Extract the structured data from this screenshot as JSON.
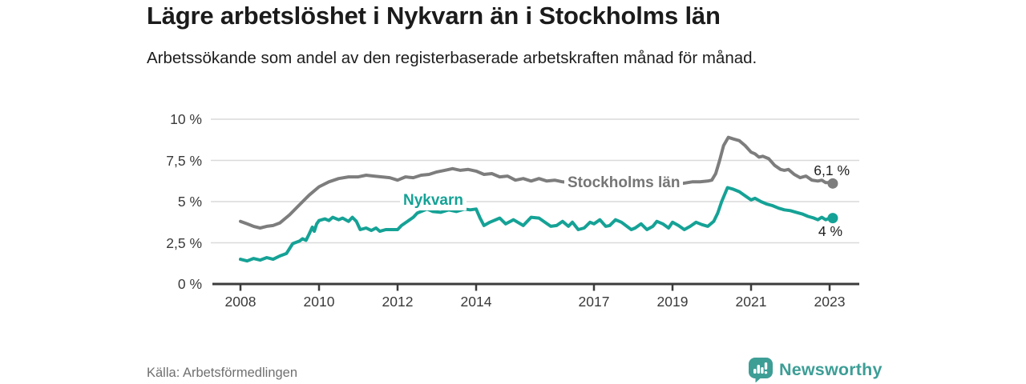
{
  "header": {
    "title": "Lägre arbetslöshet i Nykvarn än i Stockholms län",
    "subtitle": "Arbetssökande som andel av den registerbaserade arbetskraften månad för månad."
  },
  "footer": {
    "source": "Källa: Arbetsförmedlingen",
    "brand": "Newsworthy"
  },
  "colors": {
    "grid": "#dadada",
    "axis": "#3b3b3b",
    "text": "#1d1d1d",
    "muted": "#707070",
    "brand": "#3d9e96",
    "nykvarn": "#15a296",
    "stockholm": "#7d7d7d"
  },
  "chart_data": {
    "type": "line",
    "title": "Lägre arbetslöshet i Nykvarn än i Stockholms län",
    "subtitle": "Arbetssökande som andel av den registerbaserade arbetskraften månad för månad.",
    "unit": "%",
    "xlim": [
      2007.3,
      2023.75
    ],
    "ylim": [
      0,
      10
    ],
    "grid": true,
    "y_ticks": [
      {
        "value": 0,
        "label": "0 %"
      },
      {
        "value": 2.5,
        "label": "2,5 %"
      },
      {
        "value": 5,
        "label": "5 %"
      },
      {
        "value": 7.5,
        "label": "7,5 %"
      },
      {
        "value": 10,
        "label": "10 %"
      }
    ],
    "x_ticks": [
      {
        "value": 2008,
        "label": "2008"
      },
      {
        "value": 2010,
        "label": "2010"
      },
      {
        "value": 2012,
        "label": "2012"
      },
      {
        "value": 2014,
        "label": "2014"
      },
      {
        "value": 2017,
        "label": "2017"
      },
      {
        "value": 2019,
        "label": "2019"
      },
      {
        "value": 2021,
        "label": "2021"
      },
      {
        "value": 2023,
        "label": "2023"
      }
    ],
    "series": [
      {
        "name": "Stockholms län",
        "color": "#7d7d7d",
        "end_label": "6,1 %",
        "end_value": 6.1,
        "points": [
          [
            2008.0,
            3.8
          ],
          [
            2008.17,
            3.65
          ],
          [
            2008.33,
            3.5
          ],
          [
            2008.5,
            3.4
          ],
          [
            2008.67,
            3.5
          ],
          [
            2008.83,
            3.55
          ],
          [
            2009.0,
            3.7
          ],
          [
            2009.25,
            4.2
          ],
          [
            2009.5,
            4.8
          ],
          [
            2009.75,
            5.4
          ],
          [
            2010.0,
            5.9
          ],
          [
            2010.25,
            6.2
          ],
          [
            2010.5,
            6.4
          ],
          [
            2010.75,
            6.5
          ],
          [
            2011.0,
            6.5
          ],
          [
            2011.2,
            6.6
          ],
          [
            2011.4,
            6.55
          ],
          [
            2011.6,
            6.5
          ],
          [
            2011.8,
            6.45
          ],
          [
            2012.0,
            6.3
          ],
          [
            2012.2,
            6.5
          ],
          [
            2012.4,
            6.45
          ],
          [
            2012.6,
            6.6
          ],
          [
            2012.8,
            6.65
          ],
          [
            2013.0,
            6.8
          ],
          [
            2013.2,
            6.9
          ],
          [
            2013.4,
            7.0
          ],
          [
            2013.6,
            6.9
          ],
          [
            2013.8,
            6.95
          ],
          [
            2014.0,
            6.85
          ],
          [
            2014.2,
            6.65
          ],
          [
            2014.4,
            6.7
          ],
          [
            2014.6,
            6.5
          ],
          [
            2014.8,
            6.55
          ],
          [
            2015.0,
            6.3
          ],
          [
            2015.2,
            6.4
          ],
          [
            2015.4,
            6.25
          ],
          [
            2015.6,
            6.4
          ],
          [
            2015.8,
            6.25
          ],
          [
            2016.0,
            6.3
          ],
          [
            2016.2,
            6.2
          ],
          [
            2016.4,
            6.15
          ],
          [
            2016.6,
            6.1
          ],
          [
            2016.8,
            6.1
          ],
          [
            2017.0,
            6.1
          ],
          [
            2017.25,
            6.05
          ],
          [
            2017.5,
            6.1
          ],
          [
            2017.75,
            6.0
          ],
          [
            2018.0,
            6.05
          ],
          [
            2018.25,
            6.0
          ],
          [
            2018.5,
            6.1
          ],
          [
            2018.75,
            6.05
          ],
          [
            2019.0,
            6.15
          ],
          [
            2019.25,
            6.1
          ],
          [
            2019.5,
            6.2
          ],
          [
            2019.7,
            6.2
          ],
          [
            2019.9,
            6.25
          ],
          [
            2020.0,
            6.3
          ],
          [
            2020.1,
            6.7
          ],
          [
            2020.2,
            7.5
          ],
          [
            2020.3,
            8.4
          ],
          [
            2020.42,
            8.9
          ],
          [
            2020.55,
            8.8
          ],
          [
            2020.7,
            8.7
          ],
          [
            2020.85,
            8.4
          ],
          [
            2021.0,
            8.0
          ],
          [
            2021.1,
            7.9
          ],
          [
            2021.2,
            7.7
          ],
          [
            2021.3,
            7.75
          ],
          [
            2021.45,
            7.6
          ],
          [
            2021.6,
            7.2
          ],
          [
            2021.75,
            6.95
          ],
          [
            2021.85,
            6.9
          ],
          [
            2021.95,
            6.95
          ],
          [
            2022.1,
            6.65
          ],
          [
            2022.25,
            6.45
          ],
          [
            2022.4,
            6.55
          ],
          [
            2022.55,
            6.3
          ],
          [
            2022.7,
            6.25
          ],
          [
            2022.8,
            6.3
          ],
          [
            2022.9,
            6.15
          ],
          [
            2023.0,
            6.15
          ],
          [
            2023.08,
            6.1
          ]
        ]
      },
      {
        "name": "Nykvarn",
        "color": "#15a296",
        "end_label": "4 %",
        "end_value": 4.0,
        "points": [
          [
            2008.0,
            1.5
          ],
          [
            2008.17,
            1.4
          ],
          [
            2008.33,
            1.55
          ],
          [
            2008.5,
            1.45
          ],
          [
            2008.67,
            1.6
          ],
          [
            2008.83,
            1.5
          ],
          [
            2009.0,
            1.7
          ],
          [
            2009.17,
            1.85
          ],
          [
            2009.33,
            2.45
          ],
          [
            2009.5,
            2.6
          ],
          [
            2009.58,
            2.75
          ],
          [
            2009.67,
            2.65
          ],
          [
            2009.75,
            3.05
          ],
          [
            2009.83,
            3.45
          ],
          [
            2009.88,
            3.2
          ],
          [
            2009.94,
            3.65
          ],
          [
            2010.0,
            3.85
          ],
          [
            2010.15,
            3.95
          ],
          [
            2010.25,
            3.85
          ],
          [
            2010.35,
            4.05
          ],
          [
            2010.5,
            3.9
          ],
          [
            2010.6,
            4.0
          ],
          [
            2010.75,
            3.8
          ],
          [
            2010.85,
            4.05
          ],
          [
            2010.95,
            3.8
          ],
          [
            2011.05,
            3.3
          ],
          [
            2011.2,
            3.4
          ],
          [
            2011.33,
            3.25
          ],
          [
            2011.45,
            3.4
          ],
          [
            2011.55,
            3.2
          ],
          [
            2011.7,
            3.3
          ],
          [
            2011.85,
            3.3
          ],
          [
            2012.0,
            3.3
          ],
          [
            2012.1,
            3.55
          ],
          [
            2012.25,
            3.8
          ],
          [
            2012.4,
            4.05
          ],
          [
            2012.5,
            4.3
          ],
          [
            2012.65,
            4.45
          ],
          [
            2012.75,
            4.55
          ],
          [
            2012.9,
            4.4
          ],
          [
            2013.1,
            4.35
          ],
          [
            2013.3,
            4.5
          ],
          [
            2013.5,
            4.4
          ],
          [
            2013.7,
            4.55
          ],
          [
            2013.85,
            4.5
          ],
          [
            2014.0,
            4.55
          ],
          [
            2014.1,
            4.0
          ],
          [
            2014.2,
            3.55
          ],
          [
            2014.35,
            3.75
          ],
          [
            2014.6,
            4.0
          ],
          [
            2014.75,
            3.65
          ],
          [
            2014.95,
            3.9
          ],
          [
            2015.2,
            3.55
          ],
          [
            2015.4,
            4.05
          ],
          [
            2015.6,
            4.0
          ],
          [
            2015.9,
            3.5
          ],
          [
            2016.05,
            3.55
          ],
          [
            2016.2,
            3.8
          ],
          [
            2016.35,
            3.5
          ],
          [
            2016.45,
            3.75
          ],
          [
            2016.6,
            3.3
          ],
          [
            2016.75,
            3.4
          ],
          [
            2016.9,
            3.75
          ],
          [
            2017.0,
            3.65
          ],
          [
            2017.15,
            3.9
          ],
          [
            2017.3,
            3.5
          ],
          [
            2017.4,
            3.55
          ],
          [
            2017.55,
            3.9
          ],
          [
            2017.7,
            3.75
          ],
          [
            2017.95,
            3.3
          ],
          [
            2018.05,
            3.4
          ],
          [
            2018.2,
            3.65
          ],
          [
            2018.35,
            3.3
          ],
          [
            2018.5,
            3.5
          ],
          [
            2018.6,
            3.8
          ],
          [
            2018.75,
            3.65
          ],
          [
            2018.9,
            3.4
          ],
          [
            2019.0,
            3.75
          ],
          [
            2019.15,
            3.55
          ],
          [
            2019.3,
            3.3
          ],
          [
            2019.45,
            3.5
          ],
          [
            2019.6,
            3.75
          ],
          [
            2019.75,
            3.6
          ],
          [
            2019.9,
            3.5
          ],
          [
            2020.05,
            3.8
          ],
          [
            2020.15,
            4.3
          ],
          [
            2020.25,
            5.0
          ],
          [
            2020.4,
            5.85
          ],
          [
            2020.55,
            5.75
          ],
          [
            2020.7,
            5.6
          ],
          [
            2020.85,
            5.35
          ],
          [
            2021.0,
            5.1
          ],
          [
            2021.1,
            5.2
          ],
          [
            2021.25,
            5.0
          ],
          [
            2021.4,
            4.85
          ],
          [
            2021.55,
            4.75
          ],
          [
            2021.7,
            4.6
          ],
          [
            2021.85,
            4.5
          ],
          [
            2022.0,
            4.45
          ],
          [
            2022.15,
            4.35
          ],
          [
            2022.3,
            4.25
          ],
          [
            2022.45,
            4.1
          ],
          [
            2022.6,
            4.0
          ],
          [
            2022.7,
            3.9
          ],
          [
            2022.8,
            4.05
          ],
          [
            2022.9,
            3.9
          ],
          [
            2023.0,
            4.0
          ],
          [
            2023.08,
            4.0
          ]
        ]
      }
    ],
    "legend_position": "inline-labels"
  }
}
